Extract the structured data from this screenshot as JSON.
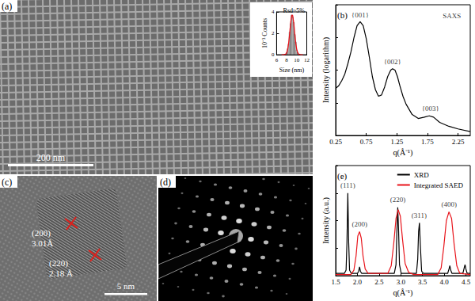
{
  "chart_data": [
    {
      "type": "histogram",
      "title": "Rsd~5%",
      "x_label": "Size (nm)",
      "y_label": "10⁻³ Counts",
      "bins": [
        7.9,
        8.1,
        8.3,
        8.5,
        8.7,
        8.9,
        9.1,
        9.3,
        9.5,
        9.7,
        9.9,
        10.1,
        10.3
      ],
      "counts": [
        0.2,
        0.55,
        1.0,
        2.1,
        2.9,
        3.7,
        3.5,
        3.0,
        1.9,
        1.2,
        0.45,
        0.2
      ],
      "color": "#ffffff",
      "fit": {
        "color": "#e8141b",
        "x": [
          7.0,
          7.5,
          7.8,
          8.0,
          8.2,
          8.4,
          8.6,
          8.8,
          9.0,
          9.1,
          9.2,
          9.4,
          9.6,
          9.8,
          10.0,
          10.2,
          10.4,
          10.7,
          11.2
        ],
        "values": [
          0,
          0.01,
          0.06,
          0.19,
          0.5,
          1.1,
          2.0,
          3.0,
          3.65,
          3.7,
          3.65,
          3.0,
          2.0,
          1.1,
          0.5,
          0.19,
          0.06,
          0.01,
          0
        ]
      },
      "xlim": [
        6,
        12
      ],
      "xticks": [
        6,
        8,
        10,
        12
      ],
      "ylim": [
        0,
        4
      ],
      "yticks": [
        0,
        2,
        4
      ],
      "grid": false
    },
    {
      "type": "line",
      "title": "(b)",
      "x_label": "q(Å⁻¹)",
      "y_label": "Intensity (logarithm)",
      "color": "#000000",
      "x": [
        0.25,
        0.3,
        0.35,
        0.4,
        0.45,
        0.5,
        0.55,
        0.6,
        0.65,
        0.7,
        0.75,
        0.8,
        0.85,
        0.9,
        0.95,
        1.0,
        1.05,
        1.1,
        1.15,
        1.18,
        1.22,
        1.26,
        1.3,
        1.35,
        1.4,
        1.5,
        1.6,
        1.7,
        1.78,
        1.85,
        1.95,
        2.1,
        2.25,
        2.45
      ],
      "values": [
        0.36,
        0.38,
        0.42,
        0.47,
        0.55,
        0.64,
        0.75,
        0.84,
        0.87,
        0.84,
        0.74,
        0.6,
        0.45,
        0.35,
        0.3,
        0.31,
        0.37,
        0.45,
        0.5,
        0.51,
        0.5,
        0.45,
        0.38,
        0.3,
        0.24,
        0.16,
        0.13,
        0.14,
        0.15,
        0.14,
        0.1,
        0.07,
        0.05,
        0.03
      ],
      "annotations": [
        {
          "text": "{001}",
          "x": 0.65,
          "y": 0.89
        },
        {
          "text": "{002}",
          "x": 1.18,
          "y": 0.53
        },
        {
          "text": "{003}",
          "x": 1.8,
          "y": 0.17
        },
        {
          "text": "SAXS",
          "x": 2.15,
          "y": 0.88
        }
      ],
      "xlim": [
        0.25,
        2.45
      ],
      "xticks": [
        0.25,
        0.75,
        1.25,
        1.75,
        2.25
      ],
      "ylim": [
        0,
        1
      ],
      "yticks": [
        0,
        0.25,
        0.5,
        0.75,
        1
      ],
      "tick_labels": "x",
      "grid": false
    },
    {
      "type": "line",
      "title": "(e)",
      "x_label": "q(Å⁻¹)",
      "y_label": "Intensity (a.u.)",
      "series": [
        {
          "name": "XRD",
          "color": "#000000",
          "x": [
            1.5,
            1.7,
            1.74,
            1.76,
            1.78,
            1.8,
            1.82,
            1.86,
            2.0,
            2.03,
            2.05,
            2.07,
            2.1,
            2.85,
            2.89,
            2.91,
            2.93,
            2.95,
            2.97,
            3.01,
            3.36,
            3.39,
            3.41,
            3.43,
            3.45,
            3.48,
            3.52,
            4.08,
            4.11,
            4.13,
            4.15,
            4.18,
            4.43,
            4.46,
            4.48,
            4.5,
            4.53,
            4.6
          ],
          "values": [
            0.02,
            0.02,
            0.05,
            0.3,
            0.75,
            0.3,
            0.05,
            0.02,
            0.02,
            0.04,
            0.08,
            0.04,
            0.02,
            0.02,
            0.1,
            0.4,
            0.62,
            0.4,
            0.1,
            0.02,
            0.02,
            0.15,
            0.4,
            0.48,
            0.28,
            0.04,
            0.02,
            0.02,
            0.06,
            0.09,
            0.05,
            0.02,
            0.02,
            0.07,
            0.1,
            0.06,
            0.02,
            0.02
          ]
        },
        {
          "name": "Integrated SAED",
          "color": "#e8141b",
          "x": [
            1.5,
            1.85,
            1.92,
            1.97,
            2.01,
            2.05,
            2.09,
            2.13,
            2.18,
            2.25,
            2.7,
            2.78,
            2.84,
            2.89,
            2.94,
            2.99,
            3.04,
            3.1,
            3.18,
            3.3,
            3.85,
            3.93,
            3.99,
            4.05,
            4.11,
            4.17,
            4.23,
            4.29,
            4.36,
            4.6
          ],
          "values": [
            0.01,
            0.01,
            0.05,
            0.18,
            0.36,
            0.4,
            0.34,
            0.18,
            0.06,
            0.02,
            0.02,
            0.09,
            0.3,
            0.52,
            0.6,
            0.54,
            0.33,
            0.11,
            0.03,
            0.01,
            0.01,
            0.07,
            0.26,
            0.5,
            0.58,
            0.52,
            0.28,
            0.09,
            0.02,
            0.01
          ]
        }
      ],
      "annotations": [
        {
          "text": "(111)",
          "x": 1.78,
          "y": 0.78
        },
        {
          "text": "(200)",
          "x": 2.05,
          "y": 0.43
        },
        {
          "text": "(220)",
          "x": 2.93,
          "y": 0.65
        },
        {
          "text": "(311)",
          "x": 3.42,
          "y": 0.51
        },
        {
          "text": "(400)",
          "x": 4.11,
          "y": 0.61
        }
      ],
      "xlim": [
        1.5,
        4.6
      ],
      "xticks": [
        1.5,
        {
          "value": 2,
          "label": "2.0"
        },
        2.5,
        {
          "value": 3,
          "label": "3.0"
        },
        3.5,
        {
          "value": 4,
          "label": "4.0"
        },
        4.5
      ],
      "ylim": [
        0,
        1
      ],
      "yticks": [
        0,
        0.25,
        0.5,
        0.75,
        1
      ],
      "tick_labels": "x",
      "legend": "upper right",
      "grid": false
    }
  ],
  "images": {
    "a": {
      "label": "(a)",
      "scale_bar": "200 nm"
    },
    "c": {
      "label": "(c)",
      "scale_bar": "5 nm",
      "fringes": [
        {
          "plane": "(200)",
          "spacing": "3.01Å"
        },
        {
          "plane": "(220)",
          "spacing": "2.18 Å"
        }
      ]
    },
    "d": {
      "label": "(d)"
    }
  }
}
